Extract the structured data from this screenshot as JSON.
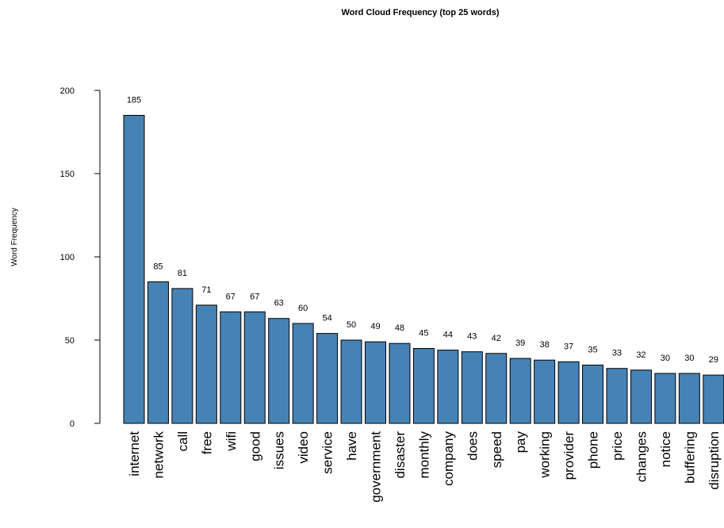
{
  "chart_data": {
    "type": "bar",
    "title": "Word Cloud Frequency (top 25 words)",
    "xlabel": "",
    "ylabel": "Word Frequency",
    "ylim": [
      0,
      200
    ],
    "yticks": [
      0,
      50,
      100,
      150,
      200
    ],
    "categories": [
      "internet",
      "network",
      "call",
      "free",
      "wifi",
      "good",
      "issues",
      "video",
      "service",
      "have",
      "government",
      "disaster",
      "monthly",
      "company",
      "does",
      "speed",
      "pay",
      "working",
      "provider",
      "phone",
      "price",
      "changes",
      "notice",
      "buffering",
      "disruption"
    ],
    "values": [
      185,
      85,
      81,
      71,
      67,
      67,
      63,
      60,
      54,
      50,
      49,
      48,
      45,
      44,
      43,
      42,
      39,
      38,
      37,
      35,
      33,
      32,
      30,
      30,
      29
    ],
    "data_labels": [
      "185",
      "85",
      "81",
      "71",
      "67",
      "67",
      "63",
      "60",
      "54",
      "50",
      "49",
      "48",
      "45",
      "44",
      "43",
      "42",
      "39",
      "38",
      "37",
      "35",
      "33",
      "32",
      "30",
      "30",
      "29"
    ],
    "bar_color": "#4682b4",
    "bar_border_color": "#000000",
    "grid": false,
    "legend": "none"
  }
}
